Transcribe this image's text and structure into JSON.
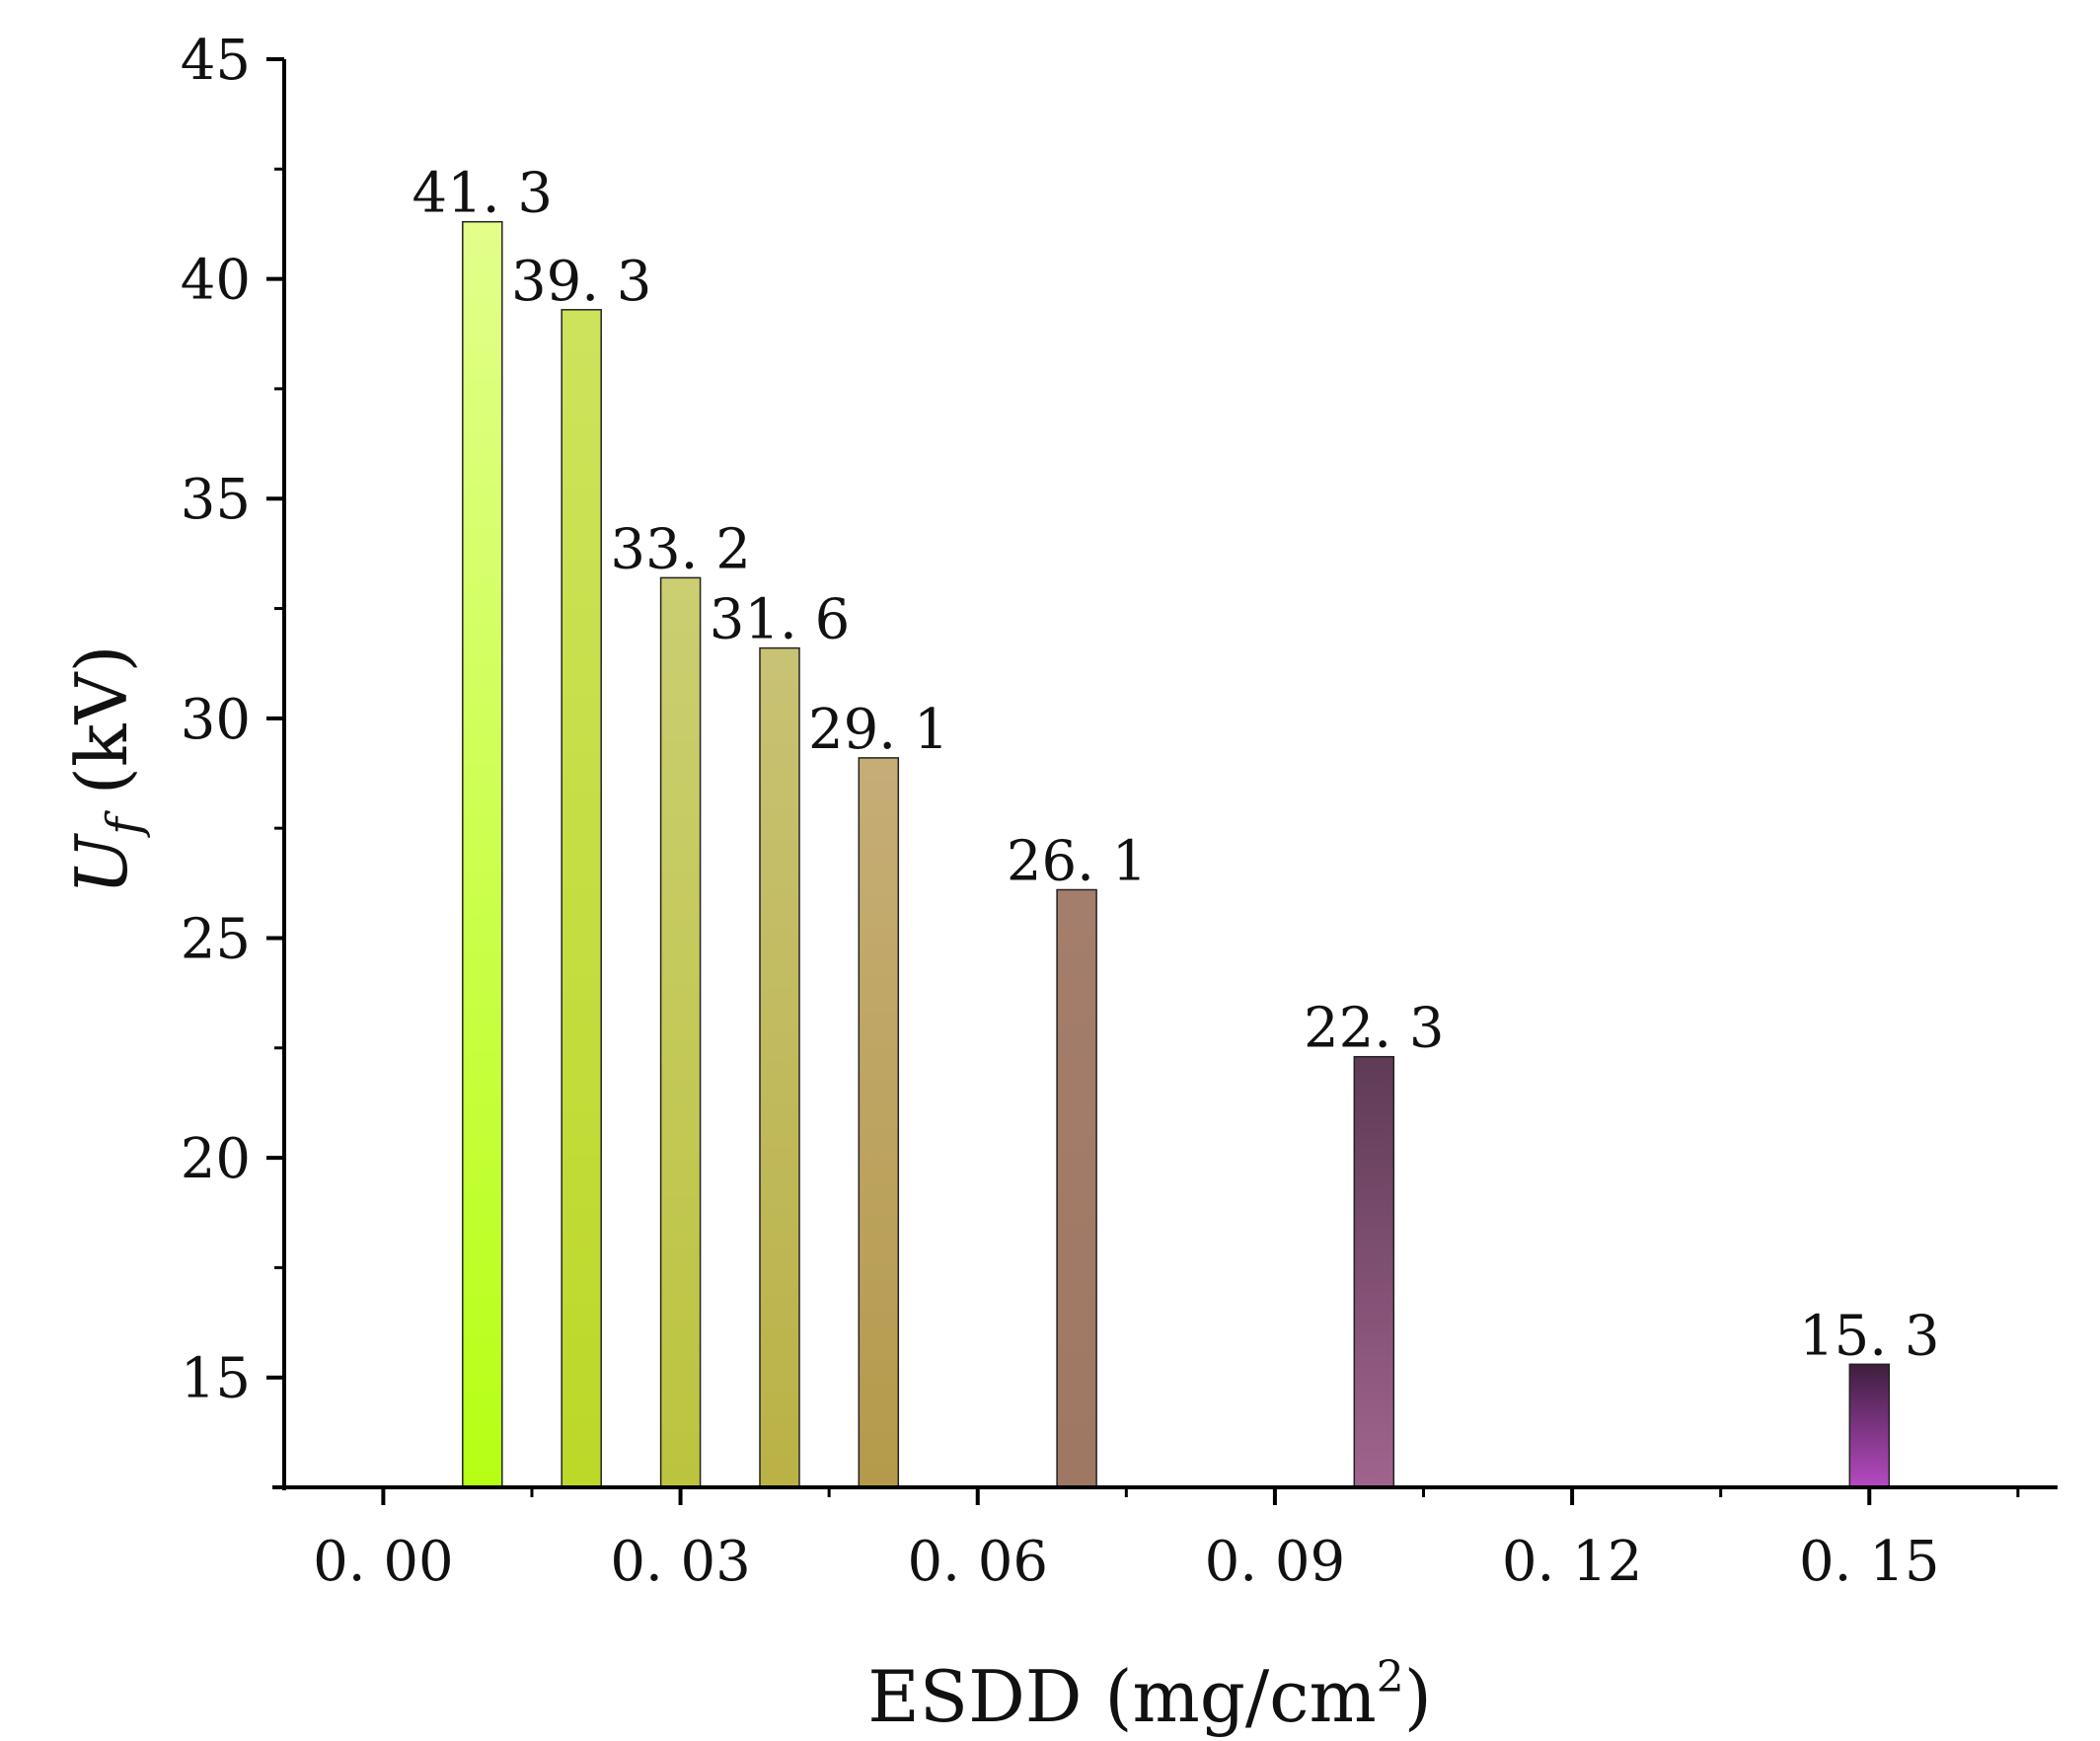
{
  "chart_data": {
    "type": "bar",
    "title": "",
    "xlabel_main": "ESDD (mg/cm",
    "xlabel_sup": "2",
    "xlabel_close": ")",
    "ylabel_main": "U",
    "ylabel_sub": "f",
    "ylabel_unit": " (kV)",
    "x": [
      0.01,
      0.02,
      0.03,
      0.04,
      0.05,
      0.07,
      0.1,
      0.15
    ],
    "values": [
      41.3,
      39.3,
      33.2,
      31.6,
      29.1,
      26.1,
      22.3,
      15.3
    ],
    "value_labels": [
      "41. 3",
      "39. 3",
      "33. 2",
      "31. 6",
      "29. 1",
      "26. 1",
      "22. 3",
      "15. 3"
    ],
    "xlim": [
      -0.01,
      0.169
    ],
    "ylim": [
      12.5,
      45
    ],
    "xticks": [
      0.0,
      0.03,
      0.06,
      0.09,
      0.12,
      0.15
    ],
    "xtick_labels": [
      "0. 00",
      "0. 03",
      "0. 06",
      "0. 09",
      "0. 12",
      "0. 15"
    ],
    "yticks": [
      15,
      20,
      25,
      30,
      35,
      40,
      45
    ],
    "ytick_labels": [
      "15",
      "20",
      "25",
      "30",
      "35",
      "40",
      "45"
    ],
    "colors_top": [
      "#e2ff8a",
      "#cde35c",
      "#cbce72",
      "#c8c274",
      "#c6ad76",
      "#a47e6c",
      "#5f3b56",
      "#3e1e3e"
    ],
    "colors_bottom": [
      "#b6ff14",
      "#bcd828",
      "#bcc43e",
      "#bab246",
      "#b49a4a",
      "#9e7862",
      "#a0648e",
      "#b64ac2"
    ],
    "grid": false
  }
}
